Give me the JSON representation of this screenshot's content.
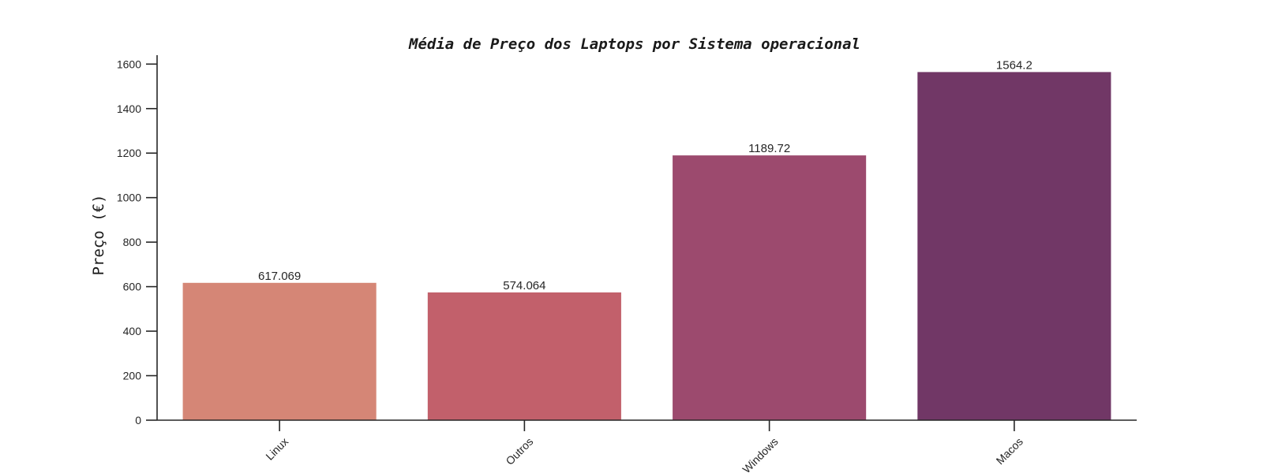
{
  "chart_data": {
    "type": "bar",
    "title": "Média de Preço dos Laptops por Sistema operacional",
    "xlabel": "",
    "ylabel": "Preço (€)",
    "categories": [
      "Linux",
      "Outros",
      "Windows",
      "Macos"
    ],
    "values": [
      617.069,
      574.064,
      1189.72,
      1564.2
    ],
    "value_labels": [
      "617.069",
      "574.064",
      "1189.72",
      "1564.2"
    ],
    "colors": [
      "#d58676",
      "#c2606b",
      "#9c4a6e",
      "#713766"
    ],
    "ylim": [
      0,
      1640
    ],
    "yticks": [
      0,
      200,
      400,
      600,
      800,
      1000,
      1200,
      1400,
      1600
    ],
    "grid": false,
    "legend": "none"
  }
}
